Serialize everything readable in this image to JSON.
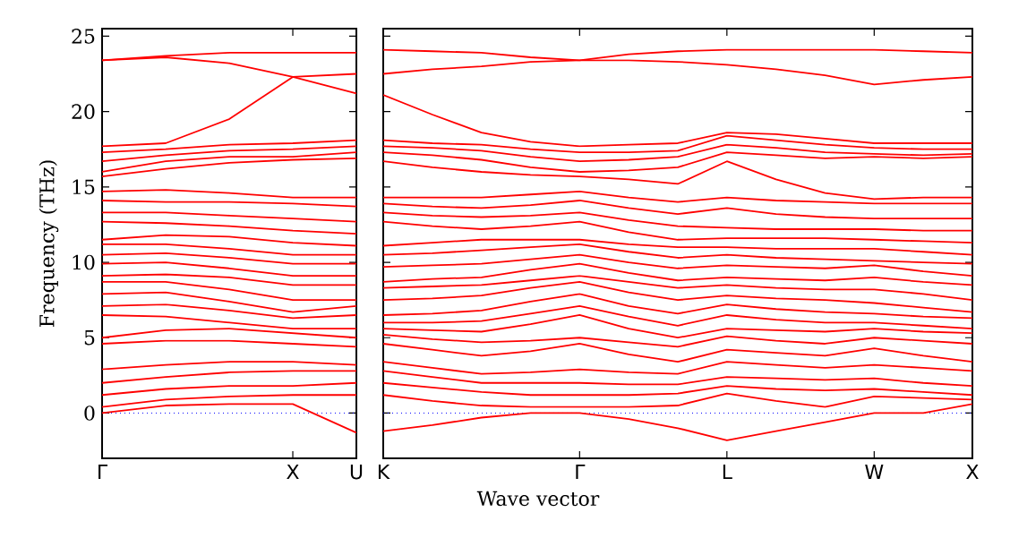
{
  "chart_data": [
    {
      "type": "line",
      "ylabel": "Frequency (THz)",
      "categories": [
        "Γ",
        null,
        null,
        "X",
        "U"
      ],
      "ylim": [
        -3,
        25.5
      ],
      "yticks": [
        0,
        5,
        10,
        15,
        20,
        25
      ],
      "ref_lines": [
        {
          "axis": "y",
          "value": 0,
          "color": "#0000ff",
          "line_style": "dotted"
        }
      ],
      "series": [
        {
          "color": "#ff0000",
          "values": [
            23.4,
            23.7,
            23.9,
            23.9,
            23.9
          ]
        },
        {
          "color": "#ff0000",
          "values": [
            23.4,
            23.6,
            23.2,
            22.3,
            22.5
          ]
        },
        {
          "color": "#ff0000",
          "values": [
            17.7,
            17.9,
            19.5,
            22.3,
            21.2
          ]
        },
        {
          "color": "#ff0000",
          "values": [
            17.3,
            17.5,
            17.8,
            17.9,
            18.1
          ]
        },
        {
          "color": "#ff0000",
          "values": [
            16.7,
            17.1,
            17.4,
            17.5,
            17.7
          ]
        },
        {
          "color": "#ff0000",
          "values": [
            16.0,
            16.7,
            17.0,
            17.0,
            17.3
          ]
        },
        {
          "color": "#ff0000",
          "values": [
            15.7,
            16.2,
            16.6,
            16.8,
            16.9
          ]
        },
        {
          "color": "#ff0000",
          "values": [
            14.7,
            14.8,
            14.6,
            14.3,
            14.3
          ]
        },
        {
          "color": "#ff0000",
          "values": [
            14.1,
            14.0,
            14.0,
            13.9,
            13.7
          ]
        },
        {
          "color": "#ff0000",
          "values": [
            13.3,
            13.3,
            13.1,
            12.9,
            12.7
          ]
        },
        {
          "color": "#ff0000",
          "values": [
            12.7,
            12.6,
            12.4,
            12.1,
            11.9
          ]
        },
        {
          "color": "#ff0000",
          "values": [
            11.5,
            11.8,
            11.7,
            11.3,
            11.1
          ]
        },
        {
          "color": "#ff0000",
          "values": [
            11.2,
            11.2,
            10.9,
            10.5,
            10.5
          ]
        },
        {
          "color": "#ff0000",
          "values": [
            10.5,
            10.6,
            10.3,
            9.9,
            9.9
          ]
        },
        {
          "color": "#ff0000",
          "values": [
            9.9,
            10.0,
            9.6,
            9.1,
            9.1
          ]
        },
        {
          "color": "#ff0000",
          "values": [
            9.1,
            9.2,
            9.0,
            8.5,
            8.5
          ]
        },
        {
          "color": "#ff0000",
          "values": [
            8.7,
            8.7,
            8.2,
            7.5,
            7.5
          ]
        },
        {
          "color": "#ff0000",
          "values": [
            7.9,
            8.0,
            7.4,
            6.7,
            7.1
          ]
        },
        {
          "color": "#ff0000",
          "values": [
            7.1,
            7.2,
            6.8,
            6.3,
            6.5
          ]
        },
        {
          "color": "#ff0000",
          "values": [
            6.5,
            6.4,
            6.0,
            5.6,
            5.6
          ]
        },
        {
          "color": "#ff0000",
          "values": [
            5.0,
            5.5,
            5.6,
            5.3,
            5.0
          ]
        },
        {
          "color": "#ff0000",
          "values": [
            4.6,
            4.8,
            4.8,
            4.6,
            4.4
          ]
        },
        {
          "color": "#ff0000",
          "values": [
            2.9,
            3.2,
            3.4,
            3.4,
            3.2
          ]
        },
        {
          "color": "#ff0000",
          "values": [
            2.0,
            2.4,
            2.7,
            2.8,
            2.8
          ]
        },
        {
          "color": "#ff0000",
          "values": [
            1.2,
            1.6,
            1.8,
            1.8,
            2.0
          ]
        },
        {
          "color": "#ff0000",
          "values": [
            0.4,
            0.9,
            1.1,
            1.2,
            1.2
          ]
        },
        {
          "color": "#ff0000",
          "values": [
            0,
            0.5,
            0.6,
            0.6,
            -1.3
          ]
        }
      ]
    },
    {
      "type": "line",
      "xlabel": "Wave vector",
      "categories": [
        "K",
        null,
        null,
        null,
        "Γ",
        null,
        null,
        "L",
        null,
        null,
        "W",
        null,
        "X"
      ],
      "ylim": [
        -3,
        25.5
      ],
      "yticks": [
        0,
        5,
        10,
        15,
        20,
        25
      ],
      "tick_labels": "x",
      "ref_lines": [
        {
          "axis": "y",
          "value": 0,
          "color": "#0000ff",
          "line_style": "dotted"
        }
      ],
      "series": [
        {
          "color": "#ff0000",
          "values": [
            24.1,
            24.0,
            23.9,
            23.6,
            23.4,
            23.8,
            24.0,
            24.1,
            24.1,
            24.1,
            24.1,
            24.0,
            23.9
          ]
        },
        {
          "color": "#ff0000",
          "values": [
            22.5,
            22.8,
            23.0,
            23.3,
            23.4,
            23.4,
            23.3,
            23.1,
            22.8,
            22.4,
            21.8,
            22.1,
            22.3
          ]
        },
        {
          "color": "#ff0000",
          "values": [
            21.1,
            19.8,
            18.6,
            18.0,
            17.7,
            17.8,
            17.9,
            18.6,
            18.5,
            18.2,
            17.9,
            17.9,
            17.9
          ]
        },
        {
          "color": "#ff0000",
          "values": [
            18.1,
            17.9,
            17.8,
            17.5,
            17.3,
            17.3,
            17.4,
            18.4,
            18.1,
            17.8,
            17.6,
            17.5,
            17.5
          ]
        },
        {
          "color": "#ff0000",
          "values": [
            17.7,
            17.6,
            17.4,
            17.0,
            16.7,
            16.8,
            17.0,
            17.8,
            17.6,
            17.3,
            17.2,
            17.1,
            17.2
          ]
        },
        {
          "color": "#ff0000",
          "values": [
            17.3,
            17.1,
            16.8,
            16.3,
            16.0,
            16.1,
            16.3,
            17.3,
            17.1,
            16.9,
            17.0,
            16.9,
            17.0
          ]
        },
        {
          "color": "#ff0000",
          "values": [
            16.7,
            16.3,
            16.0,
            15.8,
            15.7,
            15.5,
            15.2,
            16.7,
            15.5,
            14.6,
            14.2,
            14.3,
            14.3
          ]
        },
        {
          "color": "#ff0000",
          "values": [
            14.3,
            14.3,
            14.3,
            14.5,
            14.7,
            14.3,
            14.0,
            14.3,
            14.1,
            14.0,
            13.9,
            13.9,
            13.9
          ]
        },
        {
          "color": "#ff0000",
          "values": [
            13.9,
            13.7,
            13.6,
            13.8,
            14.1,
            13.6,
            13.2,
            13.6,
            13.2,
            13.0,
            12.9,
            12.9,
            12.9
          ]
        },
        {
          "color": "#ff0000",
          "values": [
            13.3,
            13.1,
            13.0,
            13.1,
            13.3,
            12.8,
            12.4,
            12.3,
            12.2,
            12.2,
            12.2,
            12.1,
            12.1
          ]
        },
        {
          "color": "#ff0000",
          "values": [
            12.7,
            12.4,
            12.2,
            12.4,
            12.7,
            12.0,
            11.5,
            11.6,
            11.6,
            11.6,
            11.5,
            11.4,
            11.3
          ]
        },
        {
          "color": "#ff0000",
          "values": [
            11.1,
            11.3,
            11.5,
            11.5,
            11.5,
            11.2,
            11.0,
            11.0,
            10.9,
            10.9,
            10.9,
            10.7,
            10.5
          ]
        },
        {
          "color": "#ff0000",
          "values": [
            10.5,
            10.6,
            10.8,
            11.0,
            11.2,
            10.7,
            10.3,
            10.5,
            10.3,
            10.2,
            10.1,
            10.0,
            9.9
          ]
        },
        {
          "color": "#ff0000",
          "values": [
            9.7,
            9.8,
            9.9,
            10.2,
            10.5,
            10.0,
            9.6,
            9.8,
            9.7,
            9.6,
            9.8,
            9.4,
            9.1
          ]
        },
        {
          "color": "#ff0000",
          "values": [
            8.7,
            8.9,
            9.0,
            9.5,
            9.9,
            9.3,
            8.8,
            9.0,
            8.9,
            8.8,
            9.0,
            8.7,
            8.5
          ]
        },
        {
          "color": "#ff0000",
          "values": [
            8.3,
            8.4,
            8.5,
            8.8,
            9.1,
            8.7,
            8.3,
            8.5,
            8.3,
            8.2,
            8.2,
            7.9,
            7.5
          ]
        },
        {
          "color": "#ff0000",
          "values": [
            7.5,
            7.6,
            7.8,
            8.3,
            8.7,
            8.0,
            7.5,
            7.8,
            7.6,
            7.5,
            7.3,
            7.0,
            6.7
          ]
        },
        {
          "color": "#ff0000",
          "values": [
            6.5,
            6.6,
            6.8,
            7.4,
            7.9,
            7.1,
            6.6,
            7.2,
            6.9,
            6.7,
            6.6,
            6.4,
            6.3
          ]
        },
        {
          "color": "#ff0000",
          "values": [
            6.0,
            6.0,
            6.1,
            6.6,
            7.1,
            6.4,
            5.8,
            6.5,
            6.2,
            6.0,
            6.0,
            5.8,
            5.6
          ]
        },
        {
          "color": "#ff0000",
          "values": [
            5.6,
            5.5,
            5.4,
            5.9,
            6.5,
            5.6,
            5.0,
            5.6,
            5.5,
            5.4,
            5.6,
            5.4,
            5.3
          ]
        },
        {
          "color": "#ff0000",
          "values": [
            5.2,
            4.9,
            4.7,
            4.8,
            5.0,
            4.7,
            4.4,
            5.1,
            4.8,
            4.6,
            5.0,
            4.8,
            4.6
          ]
        },
        {
          "color": "#ff0000",
          "values": [
            4.6,
            4.2,
            3.8,
            4.1,
            4.6,
            3.9,
            3.4,
            4.2,
            4.0,
            3.8,
            4.3,
            3.8,
            3.4
          ]
        },
        {
          "color": "#ff0000",
          "values": [
            3.4,
            3.0,
            2.6,
            2.7,
            2.9,
            2.7,
            2.6,
            3.4,
            3.2,
            3.0,
            3.2,
            3.0,
            2.8
          ]
        },
        {
          "color": "#ff0000",
          "values": [
            2.8,
            2.4,
            2.0,
            2.0,
            2.0,
            1.9,
            1.9,
            2.4,
            2.3,
            2.2,
            2.3,
            2.0,
            1.8
          ]
        },
        {
          "color": "#ff0000",
          "values": [
            2.0,
            1.7,
            1.4,
            1.2,
            1.2,
            1.2,
            1.3,
            1.8,
            1.6,
            1.5,
            1.6,
            1.4,
            1.2
          ]
        },
        {
          "color": "#ff0000",
          "values": [
            1.2,
            0.8,
            0.5,
            0.4,
            0.4,
            0.4,
            0.5,
            1.3,
            0.8,
            0.4,
            1.1,
            1.0,
            0.9
          ]
        },
        {
          "color": "#ff0000",
          "values": [
            -1.2,
            -0.8,
            -0.3,
            0,
            0,
            -0.4,
            -1.0,
            -1.8,
            -1.2,
            -0.6,
            0,
            0.0,
            0.6
          ]
        }
      ]
    }
  ]
}
